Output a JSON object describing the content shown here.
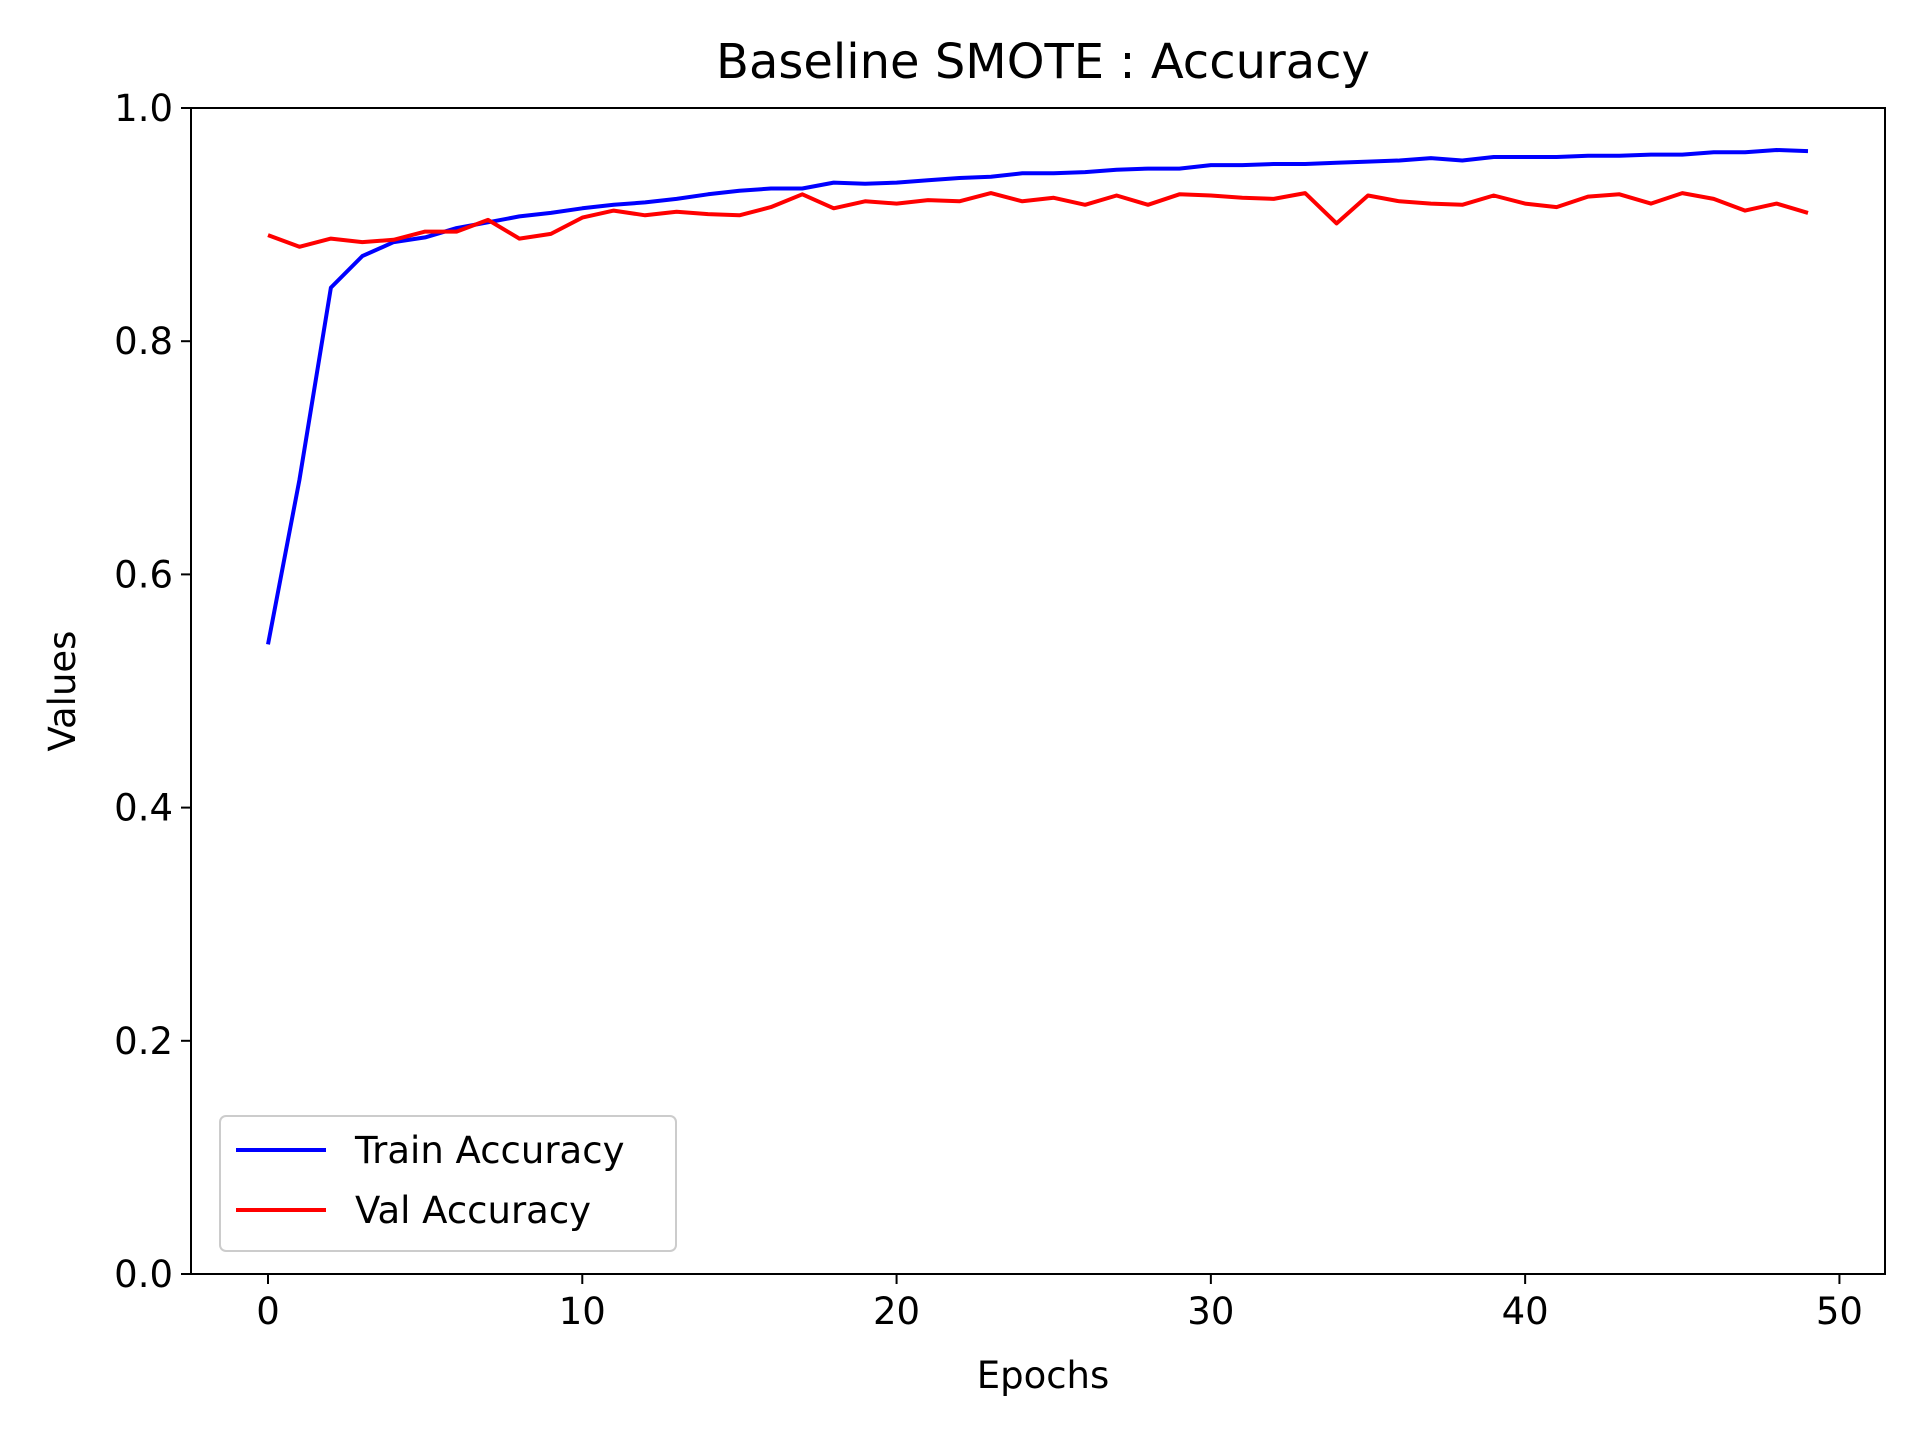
{
  "chart_data": {
    "type": "line",
    "title": "Baseline SMOTE : Accuracy",
    "xlabel": "Epochs",
    "ylabel": "Values",
    "xlim": [
      -2.45,
      51.45
    ],
    "ylim": [
      0.0,
      1.0
    ],
    "xticks": [
      0,
      10,
      20,
      30,
      40,
      50
    ],
    "xtick_labels": [
      "0",
      "10",
      "20",
      "30",
      "40",
      "50"
    ],
    "yticks": [
      0.0,
      0.2,
      0.4,
      0.6,
      0.8,
      1.0
    ],
    "ytick_labels": [
      "0.0",
      "0.2",
      "0.4",
      "0.6",
      "0.8",
      "1.0"
    ],
    "grid": false,
    "legend_position": "lower-left",
    "x": [
      0,
      1,
      2,
      3,
      4,
      5,
      6,
      7,
      8,
      9,
      10,
      11,
      12,
      13,
      14,
      15,
      16,
      17,
      18,
      19,
      20,
      21,
      22,
      23,
      24,
      25,
      26,
      27,
      28,
      29,
      30,
      31,
      32,
      33,
      34,
      35,
      36,
      37,
      38,
      39,
      40,
      41,
      42,
      43,
      44,
      45,
      46,
      47,
      48,
      49
    ],
    "series": [
      {
        "name": "Train Accuracy",
        "color": "#0000ff",
        "values": [
          0.54,
          0.681,
          0.846,
          0.873,
          0.885,
          0.889,
          0.897,
          0.902,
          0.907,
          0.91,
          0.914,
          0.917,
          0.919,
          0.922,
          0.926,
          0.929,
          0.931,
          0.931,
          0.936,
          0.935,
          0.936,
          0.938,
          0.94,
          0.941,
          0.944,
          0.944,
          0.945,
          0.947,
          0.948,
          0.948,
          0.951,
          0.951,
          0.952,
          0.952,
          0.953,
          0.954,
          0.955,
          0.957,
          0.955,
          0.958,
          0.958,
          0.958,
          0.959,
          0.959,
          0.96,
          0.96,
          0.962,
          0.962,
          0.964,
          0.963
        ]
      },
      {
        "name": "Val Accuracy",
        "color": "#ff0000",
        "values": [
          0.891,
          0.881,
          0.888,
          0.885,
          0.887,
          0.894,
          0.894,
          0.904,
          0.888,
          0.892,
          0.906,
          0.912,
          0.908,
          0.911,
          0.909,
          0.908,
          0.915,
          0.926,
          0.914,
          0.92,
          0.918,
          0.921,
          0.92,
          0.927,
          0.92,
          0.923,
          0.917,
          0.925,
          0.917,
          0.926,
          0.925,
          0.923,
          0.922,
          0.927,
          0.901,
          0.925,
          0.92,
          0.918,
          0.917,
          0.925,
          0.918,
          0.915,
          0.924,
          0.926,
          0.918,
          0.927,
          0.922,
          0.912,
          0.918,
          0.91
        ]
      }
    ]
  }
}
